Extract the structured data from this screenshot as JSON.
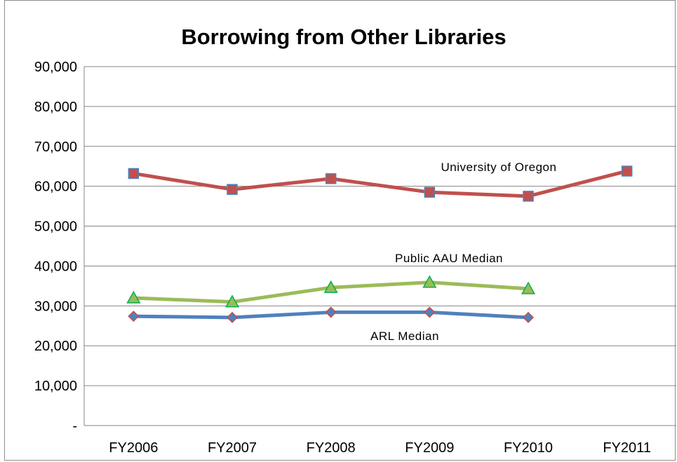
{
  "chart_data": {
    "type": "line",
    "title": "Borrowing from Other Libraries",
    "categories": [
      "FY2006",
      "FY2007",
      "FY2008",
      "FY2009",
      "FY2010",
      "FY2011"
    ],
    "ylim": [
      0,
      90000
    ],
    "yticks": [
      0,
      10000,
      20000,
      30000,
      40000,
      50000,
      60000,
      70000,
      80000,
      90000
    ],
    "ytick_labels": [
      "-",
      "10,000",
      "20,000",
      "30,000",
      "40,000",
      "50,000",
      "60,000",
      "70,000",
      "80,000",
      "90,000"
    ],
    "grid": true,
    "legend": "none",
    "series": [
      {
        "name": "University of Oregon",
        "values": [
          63200,
          59200,
          61900,
          58500,
          57500,
          63800
        ],
        "color": "#c0504d",
        "marker": "square",
        "marker_fill": "#c0504d",
        "marker_stroke": "#4f81bd"
      },
      {
        "name": "Public AAU Median",
        "values": [
          32000,
          31000,
          34600,
          35900,
          34300,
          null
        ],
        "color": "#9bbb59",
        "marker": "triangle",
        "marker_fill": "#9bbb59",
        "marker_stroke": "#00b050"
      },
      {
        "name": "ARL Median",
        "values": [
          27400,
          27100,
          28400,
          28400,
          27100,
          null
        ],
        "color": "#4f81bd",
        "marker": "diamond",
        "marker_fill": "#4f81bd",
        "marker_stroke": "#c0504d"
      }
    ]
  }
}
